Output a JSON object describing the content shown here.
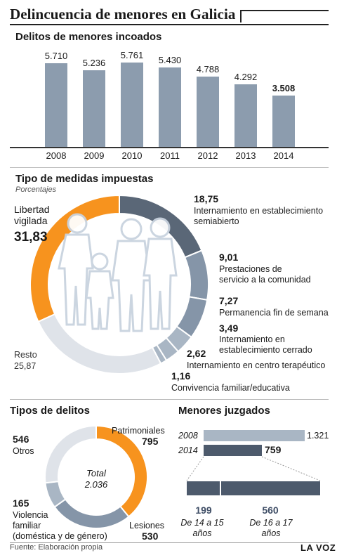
{
  "header": {
    "title": "Delincuencia de menores en Galicia"
  },
  "colors": {
    "bar": "#8c9cae",
    "orange": "#f7931e",
    "dark": "#5a6777",
    "mid": "#8595a8",
    "light": "#a9b6c4",
    "pale": "#dfe3e9",
    "navy": "#4d5a6c"
  },
  "chart_data": [
    {
      "type": "bar",
      "title": "Delitos de menores incoados",
      "categories": [
        "2008",
        "2009",
        "2010",
        "2011",
        "2012",
        "2013",
        "2014"
      ],
      "values": [
        5710,
        5236,
        5761,
        5430,
        4788,
        4292,
        3508
      ],
      "value_labels": [
        "5.710",
        "5.236",
        "5.761",
        "5.430",
        "4.788",
        "4.292",
        "3.508"
      ],
      "ylim": [
        0,
        5761
      ]
    },
    {
      "type": "pie",
      "title": "Tipo de medidas impuestas",
      "subtitle": "Porcentajes",
      "slices": [
        {
          "label": "Internamiento en establecimiento semiabierto",
          "value": 18.75,
          "value_label": "18,75"
        },
        {
          "label": "Prestaciones de servicio a la comunidad",
          "value": 9.01,
          "value_label": "9,01"
        },
        {
          "label": "Permanencia fin de semana",
          "value": 7.27,
          "value_label": "7,27"
        },
        {
          "label": "Internamiento en establecimiento cerrado",
          "value": 3.49,
          "value_label": "3,49"
        },
        {
          "label": "Internamiento en centro terapéutico",
          "value": 2.62,
          "value_label": "2,62"
        },
        {
          "label": "Convivencia familiar/educativa",
          "value": 1.16,
          "value_label": "1,16"
        },
        {
          "label": "Resto",
          "value": 25.87,
          "value_label": "25,87"
        },
        {
          "label": "Libertad vigilada",
          "value": 31.83,
          "value_label": "31,83"
        }
      ]
    },
    {
      "type": "pie",
      "title": "Tipos de delitos",
      "center_label": "Total",
      "center_value": "2.036",
      "slices": [
        {
          "label": "Patrimoniales",
          "value": 795,
          "value_label": "795"
        },
        {
          "label": "Lesiones",
          "value": 530,
          "value_label": "530"
        },
        {
          "label": "Violencia familiar (doméstica y de género)",
          "value": 165,
          "value_label": "165"
        },
        {
          "label": "Otros",
          "value": 546,
          "value_label": "546"
        }
      ]
    },
    {
      "type": "bar",
      "title": "Menores juzgados",
      "categories": [
        "2008",
        "2014"
      ],
      "values": [
        1321,
        759
      ],
      "value_labels": [
        "1.321",
        "759"
      ],
      "breakdown_2014": [
        {
          "label": "De 14 a 15 años",
          "value": 199,
          "value_label": "199"
        },
        {
          "label": "De 16 a 17 años",
          "value": 560,
          "value_label": "560"
        }
      ]
    }
  ],
  "donut_labels": {
    "libertad_line1": "Libertad",
    "libertad_line2": "vigilada",
    "semiabierto_line1": "Internamiento en establecimiento",
    "semiabierto_line2": "semiabierto",
    "prestaciones_line1": "Prestaciones de",
    "prestaciones_line2": "servicio a la comunidad",
    "permanencia": "Permanencia fin de semana",
    "cerrado_line1": "Internamiento en",
    "cerrado_line2": "establecimiento cerrado",
    "terapeutico": "Internamiento en centro terapéutico",
    "convivencia": "Convivencia familiar/educativa",
    "resto": "Resto"
  },
  "delitos_labels": {
    "violencia_line1": "Violencia",
    "violencia_line2": "familiar",
    "violencia_line3": "(doméstica y de género)"
  },
  "juzgados_labels": {
    "age1_line1": "De 14 a 15",
    "age1_line2": "años",
    "age2_line1": "De 16 a 17",
    "age2_line2": "años"
  },
  "footer": {
    "source": "Fuente: Elaboración propia",
    "brand": "LA VOZ"
  }
}
